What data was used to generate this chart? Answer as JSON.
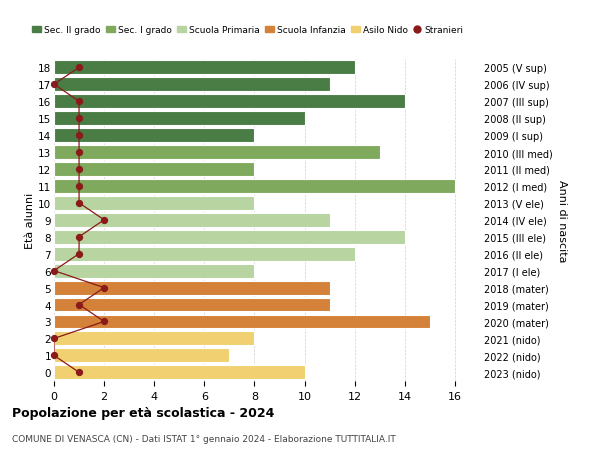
{
  "ages": [
    18,
    17,
    16,
    15,
    14,
    13,
    12,
    11,
    10,
    9,
    8,
    7,
    6,
    5,
    4,
    3,
    2,
    1,
    0
  ],
  "right_labels": [
    "2005 (V sup)",
    "2006 (IV sup)",
    "2007 (III sup)",
    "2008 (II sup)",
    "2009 (I sup)",
    "2010 (III med)",
    "2011 (II med)",
    "2012 (I med)",
    "2013 (V ele)",
    "2014 (IV ele)",
    "2015 (III ele)",
    "2016 (II ele)",
    "2017 (I ele)",
    "2018 (mater)",
    "2019 (mater)",
    "2020 (mater)",
    "2021 (nido)",
    "2022 (nido)",
    "2023 (nido)"
  ],
  "bar_values": [
    12,
    11,
    14,
    10,
    8,
    13,
    8,
    16,
    8,
    11,
    14,
    12,
    8,
    11,
    11,
    15,
    8,
    7,
    10
  ],
  "bar_colors": [
    "#4a7c45",
    "#4a7c45",
    "#4a7c45",
    "#4a7c45",
    "#4a7c45",
    "#7faa5e",
    "#7faa5e",
    "#7faa5e",
    "#b8d4a0",
    "#b8d4a0",
    "#b8d4a0",
    "#b8d4a0",
    "#b8d4a0",
    "#d4813a",
    "#d4813a",
    "#d4813a",
    "#f0d070",
    "#f0d070",
    "#f0d070"
  ],
  "stranieri_values": [
    1,
    0,
    1,
    1,
    1,
    1,
    1,
    1,
    1,
    2,
    1,
    1,
    0,
    2,
    1,
    2,
    0,
    0,
    1
  ],
  "stranieri_color": "#8b1a1a",
  "title_main": "Popolazione per età scolastica - 2024",
  "title_sub": "COMUNE DI VENASCA (CN) - Dati ISTAT 1° gennaio 2024 - Elaborazione TUTTITALIA.IT",
  "ylabel_left": "Età alunni",
  "ylabel_right": "Anni di nascita",
  "xlim_max": 17,
  "xticks": [
    0,
    2,
    4,
    6,
    8,
    10,
    12,
    14,
    16
  ],
  "legend_labels": [
    "Sec. II grado",
    "Sec. I grado",
    "Scuola Primaria",
    "Scuola Infanzia",
    "Asilo Nido",
    "Stranieri"
  ],
  "legend_colors": [
    "#4a7c45",
    "#7faa5e",
    "#b8d4a0",
    "#d4813a",
    "#f0d070",
    "#8b1a1a"
  ],
  "bg_color": "#ffffff",
  "grid_color": "#d0d0d0"
}
